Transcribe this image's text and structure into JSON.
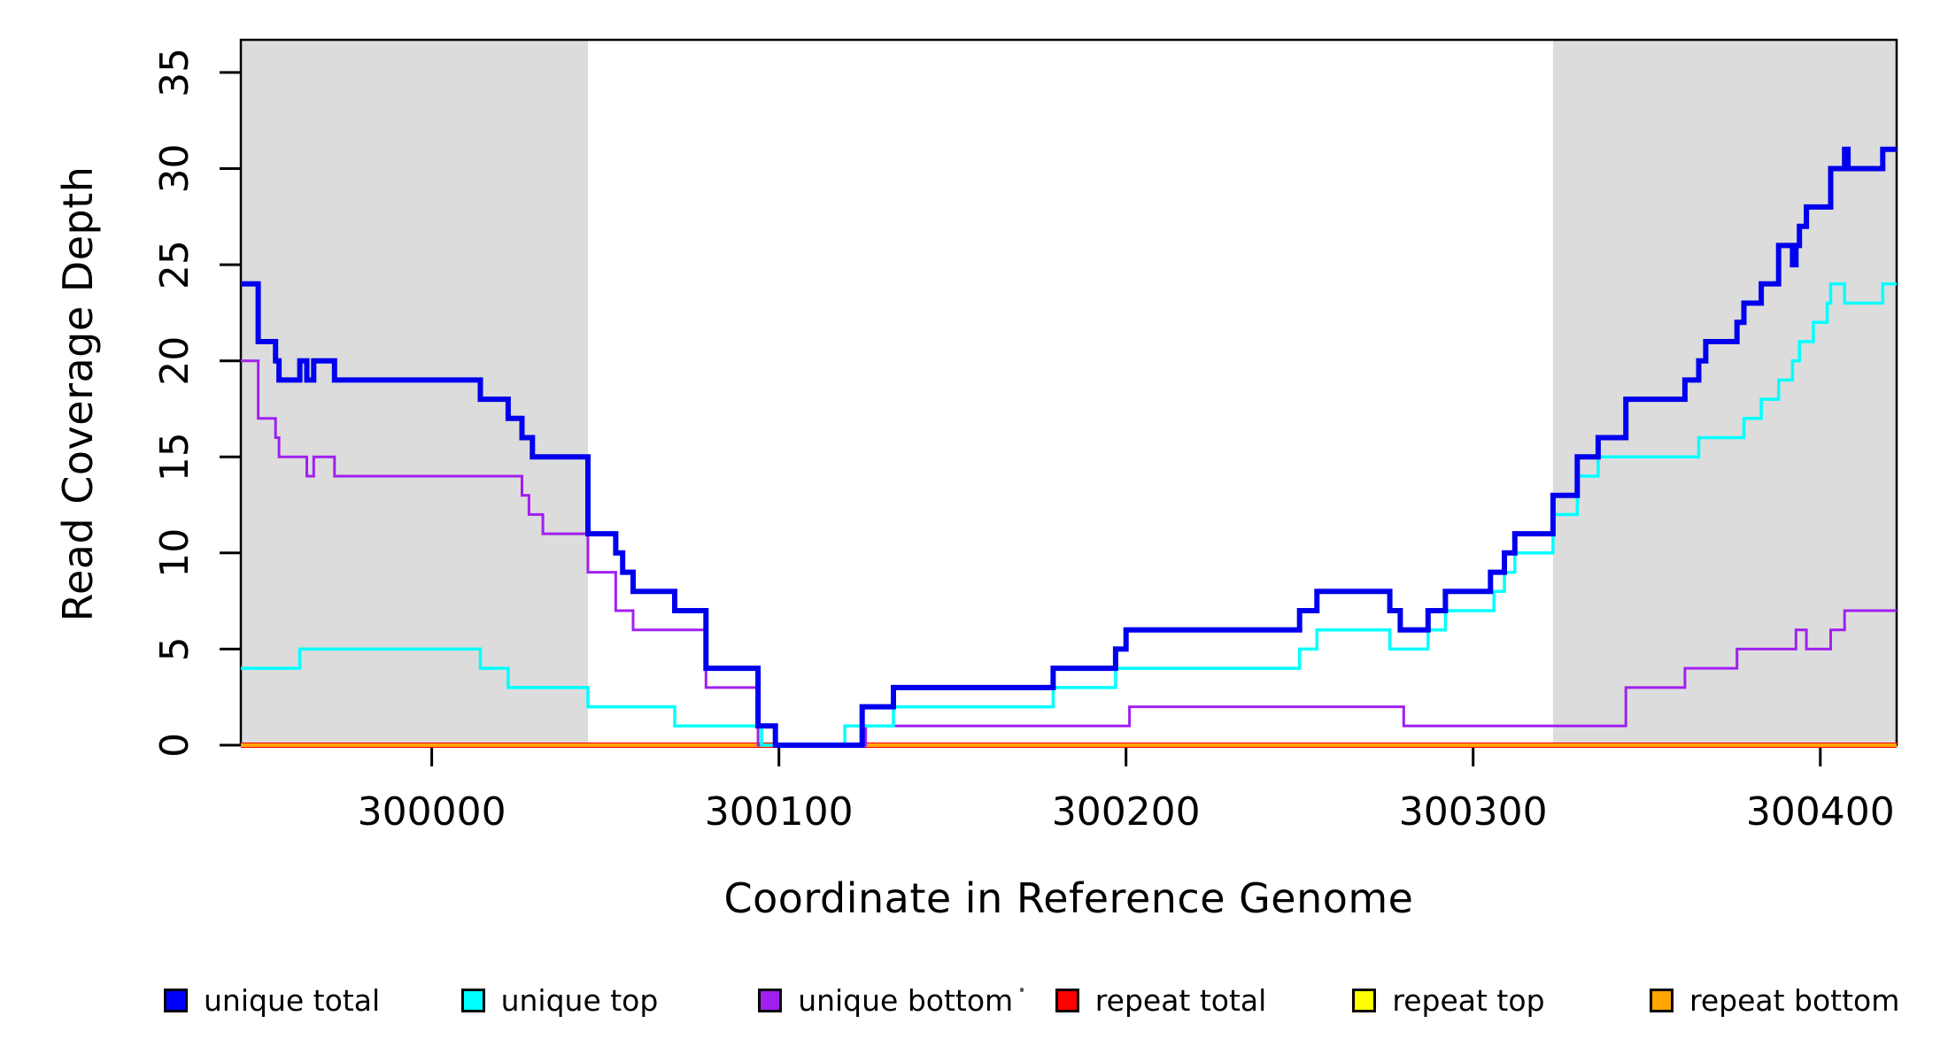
{
  "chart_data": {
    "type": "line",
    "subtype": "step",
    "title": "",
    "xlabel": "Coordinate in Reference Genome",
    "ylabel": "Read Coverage Depth",
    "xlim": [
      299945,
      300422
    ],
    "ylim": [
      0,
      36.7
    ],
    "x_ticks": [
      300000,
      300100,
      300200,
      300300,
      300400
    ],
    "y_ticks": [
      0,
      5,
      10,
      15,
      20,
      25,
      30,
      35
    ],
    "grid": false,
    "plot_background": "#FFFFFF",
    "shaded_regions": [
      {
        "name": "left-repeat-flank",
        "x0": 299945,
        "x1": 300045,
        "color": "#DCDCDC"
      },
      {
        "name": "right-repeat-flank",
        "x0": 300323,
        "x1": 300422,
        "color": "#DCDCDC"
      }
    ],
    "series": [
      {
        "name": "repeat total",
        "color": "#FF0000",
        "width": 6,
        "points": [
          [
            299945,
            0
          ],
          [
            300422,
            0
          ]
        ]
      },
      {
        "name": "repeat top",
        "color": "#FFFF00",
        "width": 3,
        "points": [
          [
            299945,
            0
          ],
          [
            300422,
            0
          ]
        ]
      },
      {
        "name": "repeat bottom",
        "color": "#FFA500",
        "width": 4,
        "points": [
          [
            299945,
            0
          ],
          [
            300422,
            0
          ]
        ]
      },
      {
        "name": "unique bottom",
        "color": "#A020F0",
        "width": 3,
        "points": [
          [
            299945,
            20
          ],
          [
            299950,
            17
          ],
          [
            299955,
            16
          ],
          [
            299956,
            15
          ],
          [
            299964,
            14
          ],
          [
            299966,
            15
          ],
          [
            299972,
            14
          ],
          [
            300026,
            13
          ],
          [
            300028,
            12
          ],
          [
            300032,
            11
          ],
          [
            300045,
            9
          ],
          [
            300053,
            7
          ],
          [
            300058,
            6
          ],
          [
            300079,
            3
          ],
          [
            300094,
            0
          ],
          [
            300125,
            1
          ],
          [
            300201,
            2
          ],
          [
            300280,
            1
          ],
          [
            300344,
            3
          ],
          [
            300361,
            4
          ],
          [
            300376,
            5
          ],
          [
            300393,
            6
          ],
          [
            300396,
            5
          ],
          [
            300403,
            6
          ],
          [
            300407,
            7
          ],
          [
            300422,
            7
          ]
        ]
      },
      {
        "name": "unique top",
        "color": "#00FFFF",
        "width": 3.5,
        "points": [
          [
            299945,
            4
          ],
          [
            299962,
            5
          ],
          [
            300014,
            4
          ],
          [
            300022,
            3
          ],
          [
            300045,
            2
          ],
          [
            300070,
            1
          ],
          [
            300095,
            0
          ],
          [
            300119,
            1
          ],
          [
            300133,
            2
          ],
          [
            300179,
            3
          ],
          [
            300197,
            4
          ],
          [
            300250,
            5
          ],
          [
            300255,
            6
          ],
          [
            300276,
            5
          ],
          [
            300287,
            6
          ],
          [
            300292,
            7
          ],
          [
            300306,
            8
          ],
          [
            300309,
            9
          ],
          [
            300312,
            10
          ],
          [
            300323,
            12
          ],
          [
            300330,
            14
          ],
          [
            300336,
            15
          ],
          [
            300365,
            16
          ],
          [
            300378,
            17
          ],
          [
            300383,
            18
          ],
          [
            300388,
            19
          ],
          [
            300392,
            20
          ],
          [
            300394,
            21
          ],
          [
            300398,
            22
          ],
          [
            300402,
            23
          ],
          [
            300403,
            24
          ],
          [
            300407,
            23
          ],
          [
            300418,
            24
          ],
          [
            300422,
            24
          ]
        ]
      },
      {
        "name": "unique total",
        "color": "#0000EE",
        "width": 6,
        "points": [
          [
            299945,
            24
          ],
          [
            299950,
            21
          ],
          [
            299955,
            20
          ],
          [
            299956,
            19
          ],
          [
            299962,
            20
          ],
          [
            299964,
            19
          ],
          [
            299966,
            20
          ],
          [
            299972,
            19
          ],
          [
            300014,
            18
          ],
          [
            300022,
            17
          ],
          [
            300026,
            16
          ],
          [
            300029,
            15
          ],
          [
            300045,
            11
          ],
          [
            300053,
            10
          ],
          [
            300055,
            9
          ],
          [
            300058,
            8
          ],
          [
            300070,
            7
          ],
          [
            300079,
            4
          ],
          [
            300094,
            1
          ],
          [
            300099,
            0
          ],
          [
            300124,
            2
          ],
          [
            300133,
            3
          ],
          [
            300179,
            4
          ],
          [
            300197,
            5
          ],
          [
            300200,
            6
          ],
          [
            300250,
            7
          ],
          [
            300255,
            8
          ],
          [
            300276,
            7
          ],
          [
            300279,
            6
          ],
          [
            300287,
            7
          ],
          [
            300292,
            8
          ],
          [
            300305,
            9
          ],
          [
            300309,
            10
          ],
          [
            300312,
            11
          ],
          [
            300323,
            13
          ],
          [
            300330,
            15
          ],
          [
            300336,
            16
          ],
          [
            300344,
            18
          ],
          [
            300361,
            19
          ],
          [
            300365,
            20
          ],
          [
            300367,
            21
          ],
          [
            300376,
            22
          ],
          [
            300378,
            23
          ],
          [
            300383,
            24
          ],
          [
            300388,
            26
          ],
          [
            300392,
            25
          ],
          [
            300393,
            26
          ],
          [
            300394,
            27
          ],
          [
            300396,
            28
          ],
          [
            300403,
            30
          ],
          [
            300407,
            31
          ],
          [
            300408,
            30
          ],
          [
            300418,
            31
          ],
          [
            300422,
            31
          ]
        ]
      }
    ],
    "legend": {
      "position": "bottom",
      "entries": [
        {
          "label": "unique total",
          "color": "#0000FF"
        },
        {
          "label": "unique top",
          "color": "#00FFFF"
        },
        {
          "label": "unique bottom",
          "color": "#A020F0"
        },
        {
          "label": "repeat total",
          "color": "#FF0000"
        },
        {
          "label": "repeat top",
          "color": "#FFFF00"
        },
        {
          "label": "repeat bottom",
          "color": "#FFA500"
        }
      ]
    }
  }
}
